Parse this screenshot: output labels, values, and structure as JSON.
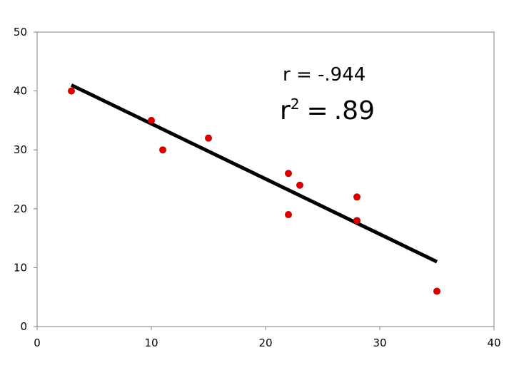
{
  "chart_data": {
    "type": "scatter",
    "title": "",
    "xlabel": "",
    "ylabel": "",
    "xlim": [
      0,
      40
    ],
    "ylim": [
      0,
      50
    ],
    "x_ticks": [
      0,
      10,
      20,
      30,
      40
    ],
    "y_ticks": [
      0,
      10,
      20,
      30,
      40,
      50
    ],
    "grid": false,
    "series": [
      {
        "points": [
          {
            "x": 3,
            "y": 40
          },
          {
            "x": 10,
            "y": 35
          },
          {
            "x": 11,
            "y": 30
          },
          {
            "x": 15,
            "y": 32
          },
          {
            "x": 22,
            "y": 26
          },
          {
            "x": 22,
            "y": 19
          },
          {
            "x": 23,
            "y": 24
          },
          {
            "x": 28,
            "y": 22
          },
          {
            "x": 28,
            "y": 18
          },
          {
            "x": 35,
            "y": 6
          }
        ],
        "color": "#d40000"
      }
    ],
    "trendline": {
      "type": "linear",
      "from": {
        "x": 3,
        "y": 41
      },
      "to": {
        "x": 35,
        "y": 11
      },
      "color": "#000000"
    },
    "annotations": {
      "r_label": "r = -.944",
      "r2_prefix": "r",
      "r2_sup": "2",
      "r2_eq": "=",
      "r2_value": ".89"
    }
  }
}
